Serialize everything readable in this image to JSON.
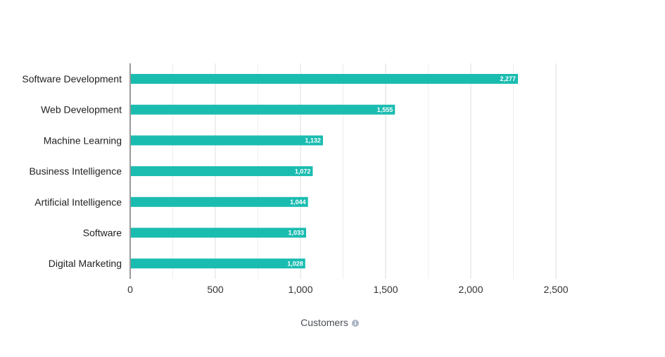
{
  "chart_data": {
    "type": "bar",
    "orientation": "horizontal",
    "title": "",
    "categories": [
      "Software Development",
      "Web Development",
      "Machine Learning",
      "Business Intelligence",
      "Artificial Intelligence",
      "Software",
      "Digital Marketing"
    ],
    "values": [
      2277,
      1555,
      1132,
      1072,
      1044,
      1033,
      1028
    ],
    "value_labels": [
      "2,277",
      "1,555",
      "1,132",
      "1,072",
      "1,044",
      "1,033",
      "1,028"
    ],
    "xlabel": "Customers",
    "ylabel": "",
    "xlim": [
      0,
      2500
    ],
    "x_ticks": [
      0,
      500,
      1000,
      1500,
      2000,
      2500
    ],
    "x_tick_labels": [
      "0",
      "500",
      "1,000",
      "1,500",
      "2,000",
      "2,500"
    ],
    "grid": true,
    "legend": "none"
  },
  "colors": {
    "bar": "#1abcb0",
    "grid_major": "#dcdcdc",
    "grid_minor": "#eeeeee",
    "axis": "#333333",
    "info_icon": "#aab4c4"
  },
  "icons": {
    "axis_info": "info-icon"
  }
}
